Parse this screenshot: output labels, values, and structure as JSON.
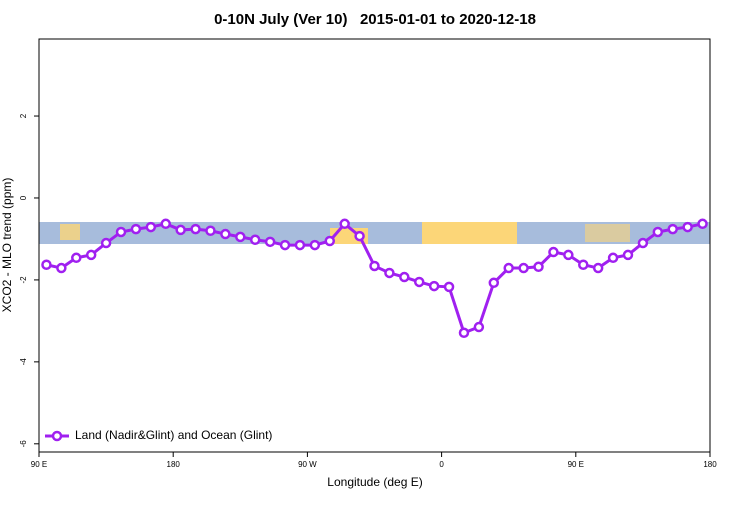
{
  "chart_data": {
    "type": "line",
    "title": "0-10N July (Ver 10)   2015-01-01 to 2020-12-18",
    "x_label": "Longitude (deg E)",
    "y_label": "XCO2 - MLO trend (ppm)",
    "x": [
      95,
      105,
      115,
      125,
      135,
      145,
      155,
      165,
      175,
      185,
      195,
      205,
      215,
      225,
      235,
      245,
      255,
      265,
      275,
      285,
      295,
      305,
      315,
      325,
      335,
      345,
      355,
      365,
      375,
      385,
      395,
      405,
      415,
      425,
      435,
      445,
      455,
      465,
      475,
      485,
      495,
      505,
      515,
      525,
      535
    ],
    "series": [
      {
        "name": "Land (Nadir&Glint) and Ocean (Glint)",
        "color": "#a020f0",
        "values": [
          -1.63,
          -1.71,
          -1.46,
          -1.39,
          -1.1,
          -0.83,
          -0.76,
          -0.71,
          -0.63,
          -0.78,
          -0.76,
          -0.8,
          -0.88,
          -0.95,
          -1.02,
          -1.07,
          -1.15,
          -1.15,
          -1.15,
          -1.05,
          -0.63,
          -0.93,
          -1.66,
          -1.83,
          -1.93,
          -2.05,
          -2.15,
          -2.17,
          -3.29,
          -3.15,
          -2.07,
          -1.71,
          -1.71,
          -1.68,
          -1.32,
          -1.39,
          -1.63,
          -1.71,
          -1.46,
          -1.39,
          -1.1,
          -0.83,
          -0.76,
          -0.71,
          -0.63
        ]
      }
    ],
    "xlim": [
      90,
      540
    ],
    "xticks": [
      {
        "value": 90,
        "label": "90 E"
      },
      180,
      {
        "value": 270,
        "label": "90 W"
      },
      {
        "value": 360,
        "label": "0"
      },
      {
        "value": 450,
        "label": "90 E"
      },
      {
        "value": 540,
        "label": "180"
      }
    ],
    "ylim": [
      -6.2,
      3.88
    ],
    "yticks": [
      -6,
      -4,
      -2,
      0,
      2
    ],
    "legend": "bottom-left"
  }
}
